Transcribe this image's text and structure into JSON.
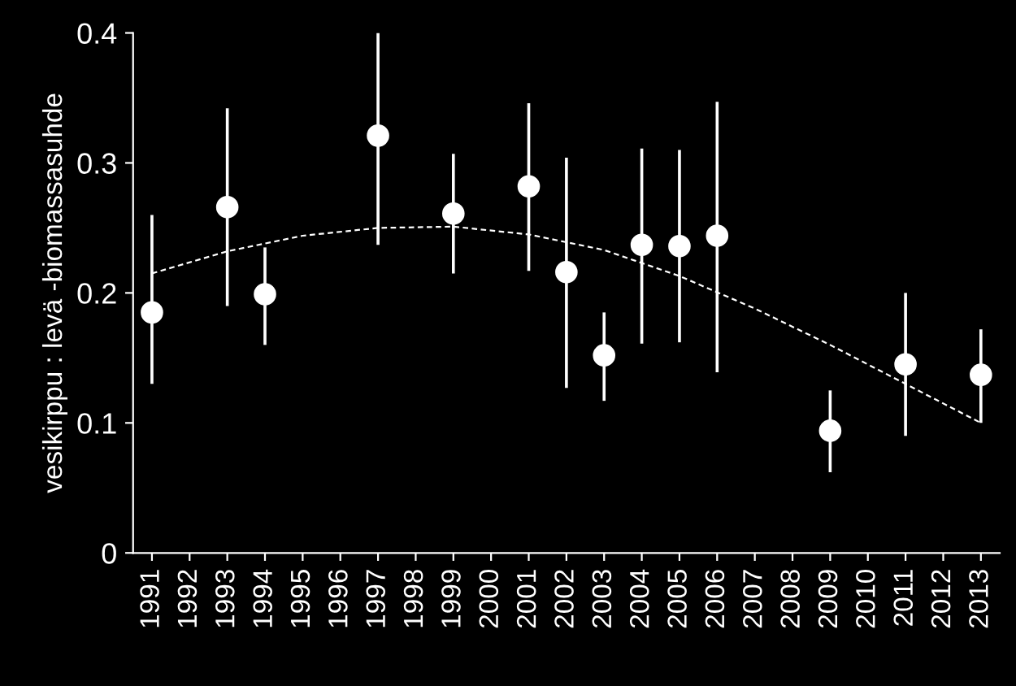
{
  "chart_data": {
    "type": "scatter",
    "ylabel": "vesikirppu : levä -biomassasuhde",
    "xlim": [
      1990.5,
      2013.5
    ],
    "xticks": [
      1991,
      1992,
      1993,
      1994,
      1995,
      1996,
      1997,
      1998,
      1999,
      2000,
      2001,
      2002,
      2003,
      2004,
      2005,
      2006,
      2007,
      2008,
      2009,
      2010,
      2011,
      2012,
      2013
    ],
    "ylim": [
      0,
      0.4
    ],
    "yticks": [
      0,
      0.1,
      0.2,
      0.3,
      0.4
    ],
    "grid": false,
    "legend": false,
    "series": [
      {
        "type": "line",
        "color": "#ffffff",
        "line_style": "dashed",
        "marker": "none",
        "x": [
          1991,
          1993,
          1995,
          1997,
          1999,
          2001,
          2003,
          2005,
          2007,
          2009,
          2011,
          2013
        ],
        "values": [
          0.215,
          0.232,
          0.244,
          0.25,
          0.251,
          0.245,
          0.233,
          0.213,
          0.188,
          0.16,
          0.13,
          0.1
        ]
      },
      {
        "type": "scatter",
        "color": "#ffffff",
        "marker": "circle",
        "x": [
          1991,
          1993,
          1994,
          1997,
          1999,
          2001,
          2002,
          2003,
          2004,
          2005,
          2006,
          2009,
          2011,
          2013
        ],
        "values": [
          0.185,
          0.266,
          0.199,
          0.321,
          0.261,
          0.282,
          0.216,
          0.152,
          0.237,
          0.236,
          0.244,
          0.094,
          0.145,
          0.137
        ],
        "errors": [
          [
            0.13,
            0.26
          ],
          [
            0.19,
            0.342
          ],
          [
            0.16,
            0.235
          ],
          [
            0.237,
            0.4
          ],
          [
            0.215,
            0.307
          ],
          [
            0.217,
            0.346
          ],
          [
            0.127,
            0.304
          ],
          [
            0.117,
            0.185
          ],
          [
            0.161,
            0.311
          ],
          [
            0.162,
            0.31
          ],
          [
            0.139,
            0.347
          ],
          [
            0.062,
            0.125
          ],
          [
            0.09,
            0.2
          ],
          [
            0.1,
            0.172
          ]
        ]
      }
    ]
  }
}
